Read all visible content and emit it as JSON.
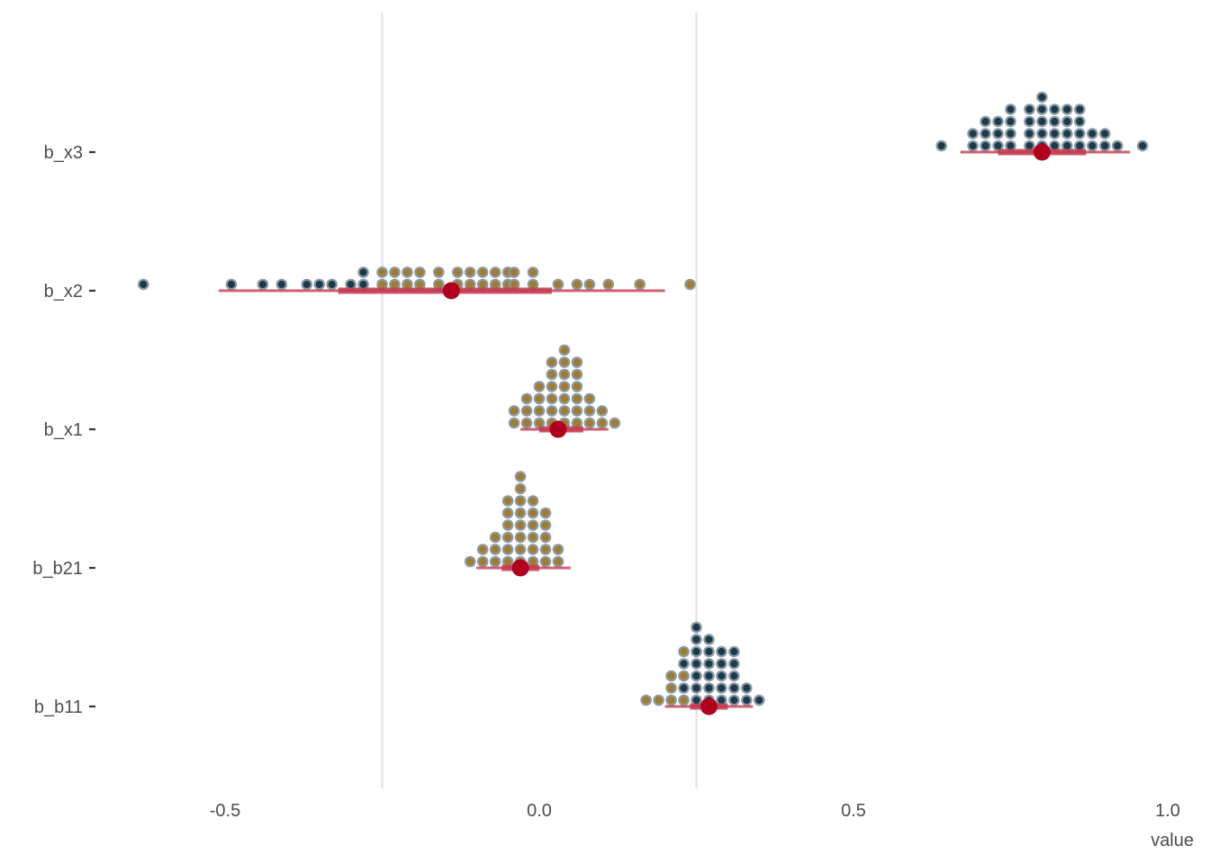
{
  "chart_data": {
    "type": "scatter",
    "xlabel": "value",
    "ylabel": "",
    "xlim": [
      -0.75,
      1.0
    ],
    "x_ticks": [
      {
        "value": -0.5,
        "label": "-0.5"
      },
      {
        "value": 0.0,
        "label": "0.0"
      },
      {
        "value": 0.5,
        "label": "0.5"
      },
      {
        "value": 1.0,
        "label": "1.0"
      }
    ],
    "reference_lines": [
      -0.25,
      0.25
    ],
    "grid": false,
    "categories": [
      "b_x3",
      "b_x2",
      "b_x1",
      "b_b21",
      "b_b11"
    ],
    "dot_bin_width": 0.021,
    "colors": {
      "dot_below_zero_or_low": "#a37b2c",
      "dot_high": "#1c3a4a",
      "dot_stroke": "#8a9aa5",
      "interval": "#c3384f",
      "point": "#b0001e",
      "reference_line": "#e3e3e3",
      "text": "#4d4d4d"
    },
    "series": [
      {
        "name": "b_x3",
        "estimate": 0.8,
        "interval_inner": [
          0.73,
          0.87
        ],
        "interval_outer": [
          0.67,
          0.94
        ],
        "dots": [
          {
            "x": 0.64,
            "n": 1,
            "fill": "dark"
          },
          {
            "x": 0.69,
            "n": 2,
            "fill": "dark"
          },
          {
            "x": 0.71,
            "n": 3,
            "fill": "dark"
          },
          {
            "x": 0.73,
            "n": 3,
            "fill": "dark"
          },
          {
            "x": 0.75,
            "n": 4,
            "fill": "dark"
          },
          {
            "x": 0.78,
            "n": 4,
            "fill": "dark"
          },
          {
            "x": 0.8,
            "n": 5,
            "fill": "dark"
          },
          {
            "x": 0.82,
            "n": 4,
            "fill": "dark"
          },
          {
            "x": 0.84,
            "n": 4,
            "fill": "dark"
          },
          {
            "x": 0.86,
            "n": 4,
            "fill": "dark"
          },
          {
            "x": 0.88,
            "n": 2,
            "fill": "dark"
          },
          {
            "x": 0.9,
            "n": 2,
            "fill": "dark"
          },
          {
            "x": 0.92,
            "n": 1,
            "fill": "dark"
          },
          {
            "x": 0.96,
            "n": 1,
            "fill": "dark"
          }
        ]
      },
      {
        "name": "b_x2",
        "estimate": -0.14,
        "interval_inner": [
          -0.32,
          0.02
        ],
        "interval_outer": [
          -0.51,
          0.2
        ],
        "dots": [
          {
            "x": -0.63,
            "n": 1,
            "fill": "dark"
          },
          {
            "x": -0.49,
            "n": 1,
            "fill": "dark"
          },
          {
            "x": -0.44,
            "n": 1,
            "fill": "dark"
          },
          {
            "x": -0.41,
            "n": 1,
            "fill": "dark"
          },
          {
            "x": -0.37,
            "n": 1,
            "fill": "dark"
          },
          {
            "x": -0.35,
            "n": 1,
            "fill": "dark"
          },
          {
            "x": -0.33,
            "n": 1,
            "fill": "dark"
          },
          {
            "x": -0.3,
            "n": 1,
            "fill": "dark"
          },
          {
            "x": -0.28,
            "n": 2,
            "fill": "dark"
          },
          {
            "x": -0.25,
            "n": 2,
            "fill": "gold"
          },
          {
            "x": -0.23,
            "n": 2,
            "fill": "gold"
          },
          {
            "x": -0.21,
            "n": 2,
            "fill": "gold"
          },
          {
            "x": -0.19,
            "n": 2,
            "fill": "gold"
          },
          {
            "x": -0.16,
            "n": 2,
            "fill": "gold"
          },
          {
            "x": -0.13,
            "n": 2,
            "fill": "gold"
          },
          {
            "x": -0.11,
            "n": 2,
            "fill": "gold"
          },
          {
            "x": -0.09,
            "n": 2,
            "fill": "gold"
          },
          {
            "x": -0.07,
            "n": 2,
            "fill": "gold"
          },
          {
            "x": -0.05,
            "n": 2,
            "fill": "gold"
          },
          {
            "x": -0.04,
            "n": 2,
            "fill": "gold"
          },
          {
            "x": -0.01,
            "n": 2,
            "fill": "gold"
          },
          {
            "x": 0.03,
            "n": 1,
            "fill": "gold"
          },
          {
            "x": 0.06,
            "n": 1,
            "fill": "gold"
          },
          {
            "x": 0.08,
            "n": 1,
            "fill": "gold"
          },
          {
            "x": 0.11,
            "n": 1,
            "fill": "gold"
          },
          {
            "x": 0.16,
            "n": 1,
            "fill": "gold"
          },
          {
            "x": 0.24,
            "n": 1,
            "fill": "gold"
          }
        ]
      },
      {
        "name": "b_x1",
        "estimate": 0.03,
        "interval_inner": [
          0.0,
          0.07
        ],
        "interval_outer": [
          -0.03,
          0.11
        ],
        "dots": [
          {
            "x": -0.04,
            "n": 2,
            "fill": "gold"
          },
          {
            "x": -0.02,
            "n": 3,
            "fill": "gold"
          },
          {
            "x": 0.0,
            "n": 4,
            "fill": "gold"
          },
          {
            "x": 0.02,
            "n": 6,
            "fill": "gold"
          },
          {
            "x": 0.04,
            "n": 7,
            "fill": "gold"
          },
          {
            "x": 0.06,
            "n": 6,
            "fill": "gold"
          },
          {
            "x": 0.08,
            "n": 3,
            "fill": "gold"
          },
          {
            "x": 0.1,
            "n": 2,
            "fill": "gold"
          },
          {
            "x": 0.12,
            "n": 1,
            "fill": "gold"
          }
        ]
      },
      {
        "name": "b_b21",
        "estimate": -0.03,
        "interval_inner": [
          -0.06,
          0.0
        ],
        "interval_outer": [
          -0.1,
          0.05
        ],
        "dots": [
          {
            "x": -0.11,
            "n": 1,
            "fill": "gold"
          },
          {
            "x": -0.09,
            "n": 2,
            "fill": "gold"
          },
          {
            "x": -0.07,
            "n": 3,
            "fill": "gold"
          },
          {
            "x": -0.05,
            "n": 6,
            "fill": "gold"
          },
          {
            "x": -0.03,
            "n": 8,
            "fill": "gold"
          },
          {
            "x": -0.01,
            "n": 6,
            "fill": "gold"
          },
          {
            "x": 0.01,
            "n": 5,
            "fill": "gold"
          },
          {
            "x": 0.03,
            "n": 2,
            "fill": "gold"
          }
        ]
      },
      {
        "name": "b_b11",
        "estimate": 0.27,
        "interval_inner": [
          0.24,
          0.3
        ],
        "interval_outer": [
          0.2,
          0.34
        ],
        "dots": [
          {
            "x": 0.17,
            "n": 1,
            "fill": "gold"
          },
          {
            "x": 0.19,
            "n": 1,
            "fill": "gold"
          },
          {
            "x": 0.21,
            "n": 3,
            "fill": "gold"
          },
          {
            "x": 0.23,
            "n": 5,
            "fill": "mixed"
          },
          {
            "x": 0.25,
            "n": 7,
            "fill": "dark"
          },
          {
            "x": 0.27,
            "n": 6,
            "fill": "dark"
          },
          {
            "x": 0.29,
            "n": 5,
            "fill": "dark"
          },
          {
            "x": 0.31,
            "n": 5,
            "fill": "dark"
          },
          {
            "x": 0.33,
            "n": 2,
            "fill": "dark"
          },
          {
            "x": 0.35,
            "n": 1,
            "fill": "dark"
          }
        ]
      }
    ]
  }
}
